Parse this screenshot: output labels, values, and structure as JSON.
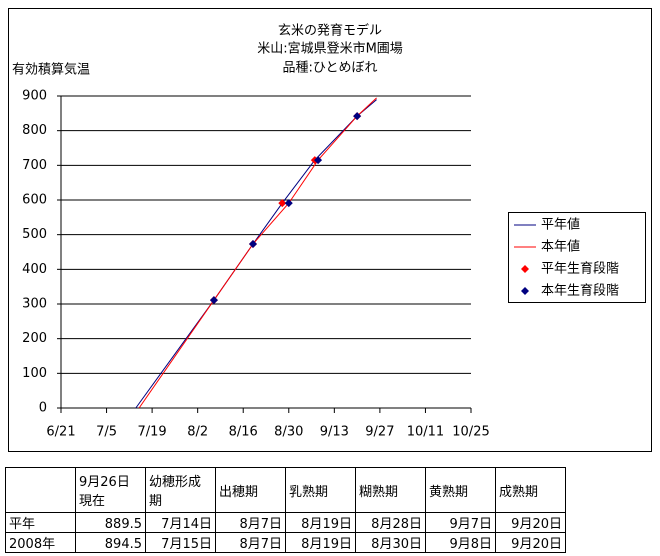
{
  "chart_data": {
    "type": "line",
    "title": [
      "玄米の発育モデル",
      "米山:宮城県登米市M圃場",
      "品種:ひとめぼれ"
    ],
    "y_label": "有効積算気温",
    "xlim": [
      "6/21",
      "10/25"
    ],
    "xticks": [
      "6/21",
      "7/5",
      "7/19",
      "8/2",
      "8/16",
      "8/30",
      "9/13",
      "9/27",
      "10/11",
      "10/25"
    ],
    "ylim": [
      0,
      900
    ],
    "yticks": [
      0,
      100,
      200,
      300,
      400,
      500,
      600,
      700,
      800,
      900
    ],
    "grid": true,
    "legend": "right",
    "series": [
      {
        "name": "平年値",
        "color": "#000080",
        "mark": "line",
        "x": [
          "7/14",
          "8/7",
          "8/19",
          "8/28",
          "9/7",
          "9/20",
          "9/26"
        ],
        "values": [
          0,
          311,
          473,
          591,
          715,
          842,
          889.5
        ]
      },
      {
        "name": "本年値",
        "color": "#ff0000",
        "mark": "line",
        "x": [
          "7/15",
          "8/7",
          "8/19",
          "8/30",
          "9/8",
          "9/20",
          "9/26"
        ],
        "values": [
          0,
          311,
          473,
          591,
          715,
          842,
          894.5
        ]
      },
      {
        "name": "平年生育段階",
        "color": "#ff0000",
        "mark": "diamond",
        "x": [
          "8/7",
          "8/19",
          "8/28",
          "9/7",
          "9/20"
        ],
        "values": [
          311,
          473,
          591,
          715,
          842
        ]
      },
      {
        "name": "本年生育段階",
        "color": "#000080",
        "mark": "diamond",
        "x": [
          "8/7",
          "8/19",
          "8/30",
          "9/8",
          "9/20"
        ],
        "values": [
          311,
          473,
          591,
          715,
          842
        ]
      }
    ]
  },
  "table": {
    "header": [
      "9月26日現在",
      "幼穂形成期",
      "出穂期",
      "乳熟期",
      "糊熟期",
      "黄熟期",
      "成熟期"
    ],
    "rows": [
      [
        "平年",
        "889.5",
        "7月14日",
        "8月7日",
        "8月19日",
        "8月28日",
        "9月7日",
        "9月20日"
      ],
      [
        "2008年",
        "894.5",
        "7月15日",
        "8月7日",
        "8月19日",
        "8月30日",
        "9月8日",
        "9月20日"
      ]
    ]
  }
}
